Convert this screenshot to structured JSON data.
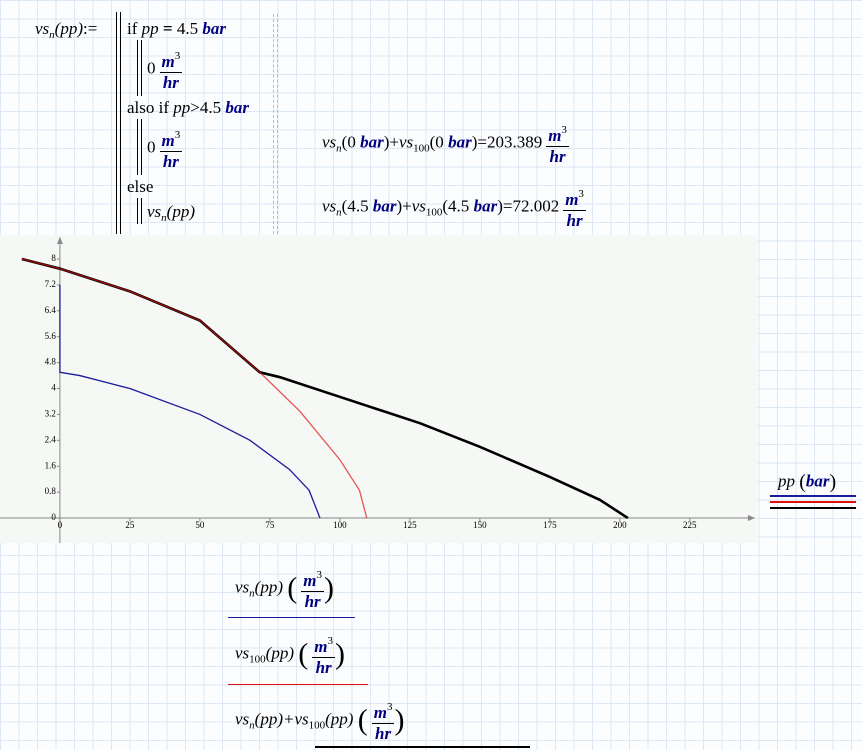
{
  "program": {
    "lhs": [
      "vs",
      "n",
      "(pp)",
      ":="
    ],
    "line1": [
      "if",
      "pp",
      "=",
      "4.5",
      "bar"
    ],
    "value1": [
      "0",
      "m",
      "3",
      "hr"
    ],
    "line2": [
      "also if",
      "pp",
      ">",
      "4.5",
      "bar"
    ],
    "value2": [
      "0",
      "m",
      "3",
      "hr"
    ],
    "line3": [
      "else"
    ],
    "value3": [
      "vs",
      "n",
      "(pp)"
    ]
  },
  "results": [
    {
      "expr": [
        "vs",
        "n",
        "(0",
        "bar",
        ")+",
        "vs",
        "100",
        "(0",
        "bar",
        ")="
      ],
      "value": 203.389,
      "unit": [
        "m",
        "3",
        "hr"
      ]
    },
    {
      "expr": [
        "vs",
        "n",
        "(4.5",
        "bar",
        ")+",
        "vs",
        "100",
        "(4.5",
        "bar",
        ")="
      ],
      "value": 72.002,
      "unit": [
        "m",
        "3",
        "hr"
      ]
    }
  ],
  "chart_data": {
    "type": "line",
    "x_label": [
      "pp",
      "(",
      "bar",
      ")"
    ],
    "y_unit": [
      "m",
      "3",
      "hr"
    ],
    "xlim": [
      -21.4,
      249
    ],
    "ylim": [
      -0.77,
      8.74
    ],
    "xticks": [
      0,
      25,
      50,
      75,
      100,
      125,
      150,
      175,
      200,
      225
    ],
    "yticks": [
      0,
      0.8,
      1.6,
      2.4,
      3.2,
      4,
      4.8,
      5.6,
      6.4,
      7.2,
      8
    ],
    "series": [
      {
        "name": [
          "vs",
          "n",
          "(pp)"
        ],
        "color": "#1a1a9c",
        "x": [
          0,
          0,
          7.1,
          25,
          50,
          67.9,
          82,
          89,
          92.9
        ],
        "values": [
          7.2,
          4.5,
          4.4,
          4.0,
          3.2,
          2.4,
          1.5,
          0.86,
          0
        ]
      },
      {
        "name": [
          "vs",
          "100",
          "(pp)"
        ],
        "color": "#e01010",
        "x": [
          -13.6,
          0,
          25,
          50,
          71.4,
          85.7,
          100,
          107,
          109.6
        ],
        "values": [
          8.0,
          7.7,
          7.0,
          6.1,
          4.5,
          3.3,
          1.8,
          0.86,
          0
        ]
      },
      {
        "name": [
          "vs",
          "n",
          "(pp)+",
          "vs",
          "100",
          "(pp)"
        ],
        "color": "#000000",
        "x": [
          -13.6,
          0,
          25,
          50,
          71.4,
          78.6,
          103.6,
          128.6,
          150,
          175,
          192.9,
          202.9
        ],
        "values": [
          8.0,
          7.7,
          7.0,
          6.1,
          4.5,
          4.35,
          3.64,
          2.93,
          2.2,
          1.27,
          0.56,
          0
        ]
      }
    ]
  }
}
